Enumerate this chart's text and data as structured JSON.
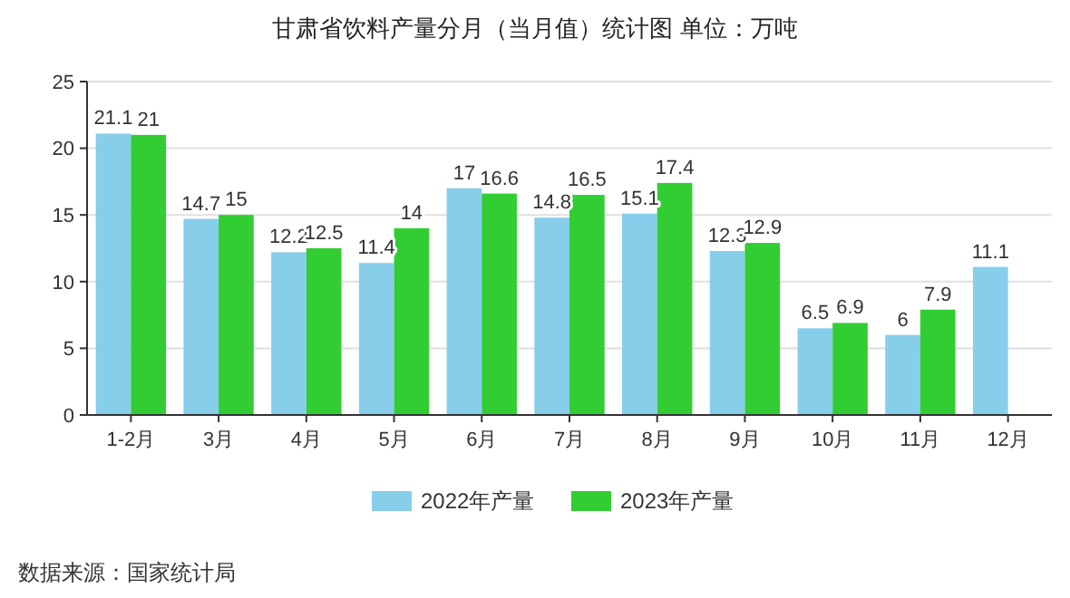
{
  "chart_data": {
    "type": "bar",
    "title": "甘肃省饮料产量分月（当月值）统计图 单位：万吨",
    "categories": [
      "1-2月",
      "3月",
      "4月",
      "5月",
      "6月",
      "7月",
      "8月",
      "9月",
      "10月",
      "11月",
      "12月"
    ],
    "series": [
      {
        "name": "2022年产量",
        "color": "#87ceeb",
        "values": [
          21.1,
          14.7,
          12.2,
          11.4,
          17,
          14.8,
          15.1,
          12.3,
          6.5,
          6,
          11.1
        ]
      },
      {
        "name": "2023年产量",
        "color": "#32cd32",
        "values": [
          21,
          15,
          12.5,
          14,
          16.6,
          16.5,
          17.4,
          12.9,
          6.9,
          7.9,
          null
        ]
      }
    ],
    "ylim": [
      0,
      25
    ],
    "yticks": [
      0,
      5,
      10,
      15,
      20,
      25
    ],
    "grid": "y",
    "legend": "bottom",
    "data_labels": true,
    "annotations": [
      "数据来源：国家统计局"
    ]
  }
}
